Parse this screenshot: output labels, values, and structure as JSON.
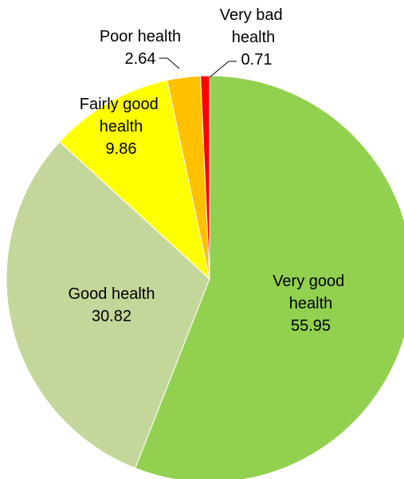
{
  "chart_data": {
    "type": "pie",
    "categories": [
      "Very good health",
      "Good health",
      "Fairly good health",
      "Poor health",
      "Very bad health"
    ],
    "values": [
      55.95,
      30.82,
      9.86,
      2.64,
      0.71
    ],
    "colors": [
      "#92d050",
      "#c4d79b",
      "#ffff00",
      "#ffc000",
      "#ff0000"
    ]
  }
}
